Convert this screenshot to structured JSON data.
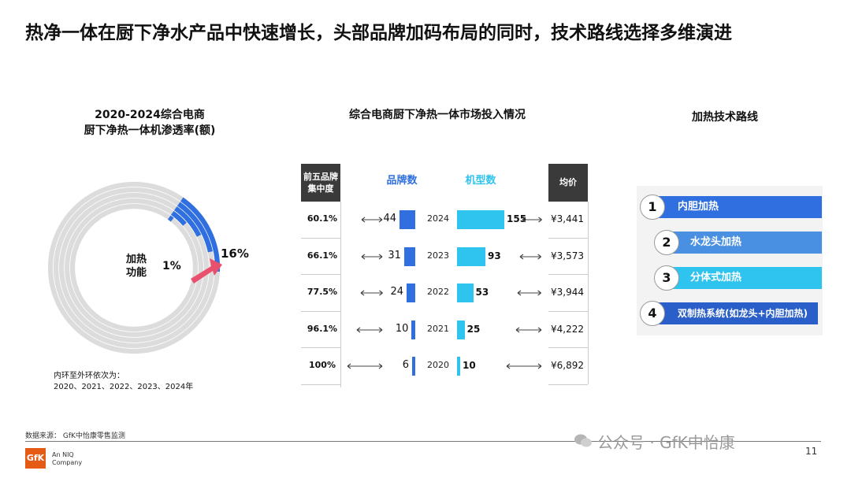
{
  "title": "热净一体在厨下净水产品中快速增长，头部品牌加码布局的同时，技术路线选择多维演进",
  "donut": {
    "title_line1": "2020-2024综合电商",
    "title_line2": "厨下净热一体机渗透率(额)",
    "center_label_line1": "加热",
    "center_label_line2": "功能",
    "inner_value_label": "1%",
    "outer_value_label": "16%",
    "note_line1": "内环至外环依次为：",
    "note_line2": "2020、2021、2022、2023、2024年"
  },
  "market": {
    "title": "综合电商厨下净热一体市场投入情况",
    "header_concentration": [
      "前五品牌",
      "集中度"
    ],
    "header_brands": "品牌数",
    "header_models": "机型数",
    "header_price": "均价",
    "arrow_glyph": "⟷"
  },
  "tech": {
    "title": "加热技术路线",
    "items": [
      {
        "num": "1",
        "label": "内胆加热",
        "color": "#2f6fe0"
      },
      {
        "num": "2",
        "label": "水龙头加热",
        "color": "#4a90e2"
      },
      {
        "num": "3",
        "label": "分体式加热",
        "color": "#2fc3ef"
      },
      {
        "num": "4",
        "label": "双制热系统(如龙头+内胆加热)",
        "color": "#2a5fc9"
      }
    ]
  },
  "footer": {
    "source": "数据来源：  GfK中怡康零售监测",
    "logo_text": "GfK",
    "company_line1": "An NIQ",
    "company_line2": "Company",
    "watermark": "公众号 · GfK中怡康",
    "page_number": "11"
  },
  "colors": {
    "brand_bar": "#2f6fe0",
    "model_bar": "#2fc3ef",
    "donut_track": "#dcdcdc",
    "donut_fill": "#2f6fe0",
    "donut_pointer": "#e8506e"
  },
  "chart_data": [
    {
      "type": "pie",
      "title": "2020-2024综合电商 厨下净热一体机渗透率(额)",
      "categories": [
        "2020",
        "2021",
        "2022",
        "2023",
        "2024"
      ],
      "values_pct": [
        1,
        4,
        8,
        12,
        16
      ],
      "annotations": [
        "1%",
        "16%"
      ]
    },
    {
      "type": "bar",
      "title": "综合电商厨下净热一体市场投入情况",
      "categories": [
        "2024",
        "2023",
        "2022",
        "2021",
        "2020"
      ],
      "series": [
        {
          "name": "品牌数",
          "values": [
            44,
            31,
            24,
            10,
            6
          ]
        },
        {
          "name": "机型数",
          "values": [
            155,
            93,
            53,
            25,
            10
          ]
        }
      ],
      "concentration": [
        "60.1%",
        "66.1%",
        "77.5%",
        "96.1%",
        "100%"
      ],
      "concentration_arrow_len": [
        0.4,
        0.4,
        0.45,
        0.6,
        1.0
      ],
      "avg_price": [
        "¥3,441",
        "¥3,573",
        "¥3,944",
        "¥4,222",
        "¥6,892"
      ],
      "price_arrow_len": [
        0.35,
        0.42,
        0.52,
        0.6,
        1.0
      ]
    }
  ]
}
